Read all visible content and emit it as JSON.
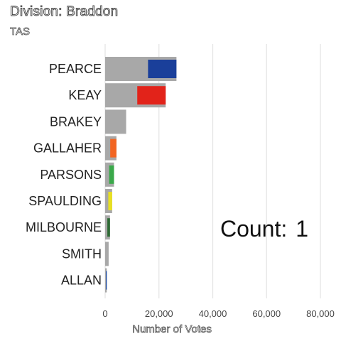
{
  "header": {
    "title": "Division: Braddon",
    "subtitle": "TAS"
  },
  "counter": {
    "label": "Count:",
    "value": "1"
  },
  "chart_data": {
    "type": "bar",
    "orientation": "horizontal",
    "title": "Division: Braddon",
    "subtitle": "TAS",
    "xlabel": "Number of Votes",
    "ylabel": "",
    "xlim": [
      0,
      90000
    ],
    "xticks": [
      0,
      20000,
      40000,
      60000,
      80000
    ],
    "xtick_labels": [
      "0",
      "20,000",
      "40,000",
      "60,000",
      "80,000"
    ],
    "grid": true,
    "categories": [
      "PEARCE",
      "KEAY",
      "BRAKEY",
      "GALLAHER",
      "PARSONS",
      "SPAULDING",
      "MILBOURNE",
      "SMITH",
      "ALLAN"
    ],
    "values": [
      26500,
      22500,
      7800,
      4200,
      3300,
      2600,
      1800,
      1300,
      600
    ],
    "logo_colors": [
      "#1a3f9a",
      "#e2231a",
      null,
      "#f26522",
      "#3aa84a",
      "#e8e020",
      "#2e6b35",
      null,
      "#1f4fa8"
    ],
    "bar_color": "#a8a8a8"
  }
}
